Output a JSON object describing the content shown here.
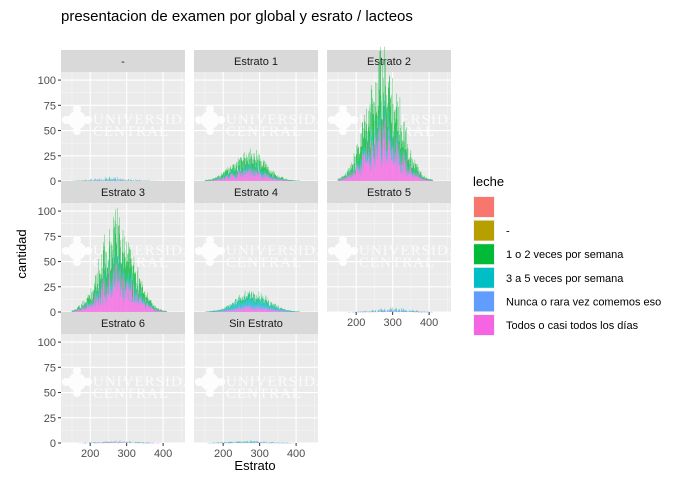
{
  "chart_data": {
    "type": "bar",
    "title": "presentacion de examen por global y esrato / lacteos",
    "xlabel": "Estrato",
    "ylabel": "cantidad",
    "x_ticks": [
      200,
      300,
      400
    ],
    "y_ticks": [
      0,
      25,
      50,
      75,
      100
    ],
    "xlim": [
      120,
      460
    ],
    "ylim": [
      0,
      108
    ],
    "stacked": true,
    "legend": {
      "title": "leche",
      "placement": "right",
      "entries": [
        {
          "label": "",
          "color": "#F8766D"
        },
        {
          "label": "-",
          "color": "#B79F00"
        },
        {
          "label": "1 o 2 veces por semana",
          "color": "#00BA38"
        },
        {
          "label": "3 a 5 veces por semana",
          "color": "#00BFC4"
        },
        {
          "label": "Nunca o rara vez comemos eso",
          "color": "#619CFF"
        },
        {
          "label": "Todos o casi todos los días",
          "color": "#F564E3"
        }
      ]
    },
    "panels": [
      {
        "name": "-",
        "center": 260,
        "spread": 45,
        "peak": [
          0,
          0,
          0.3,
          1.5,
          1.5,
          0.3
        ]
      },
      {
        "name": "Estrato 1",
        "center": 270,
        "spread": 45,
        "peak": [
          0,
          0,
          10,
          4,
          0.5,
          8
        ]
      },
      {
        "name": "Estrato 2",
        "center": 275,
        "spread": 45,
        "peak": [
          0.3,
          0.3,
          40,
          12,
          1,
          38
        ]
      },
      {
        "name": "Estrato 3",
        "center": 275,
        "spread": 45,
        "peak": [
          0.3,
          0.3,
          28,
          10,
          1,
          30
        ]
      },
      {
        "name": "Estrato 4",
        "center": 280,
        "spread": 45,
        "peak": [
          0,
          0,
          3,
          7,
          2,
          4
        ]
      },
      {
        "name": "Estrato 5",
        "center": 300,
        "spread": 45,
        "peak": [
          0,
          0,
          0.3,
          1.5,
          1.5,
          0.5
        ]
      },
      {
        "name": "Estrato 6",
        "center": 280,
        "spread": 45,
        "peak": [
          0,
          0,
          0.2,
          0.5,
          0.5,
          1
        ]
      },
      {
        "name": "Sin Estrato",
        "center": 270,
        "spread": 50,
        "peak": [
          0,
          0,
          0.2,
          1,
          0.8,
          0.3
        ]
      }
    ]
  },
  "watermark": {
    "line1": "UNIVERSIDAD",
    "line2": "CENTRAL"
  }
}
